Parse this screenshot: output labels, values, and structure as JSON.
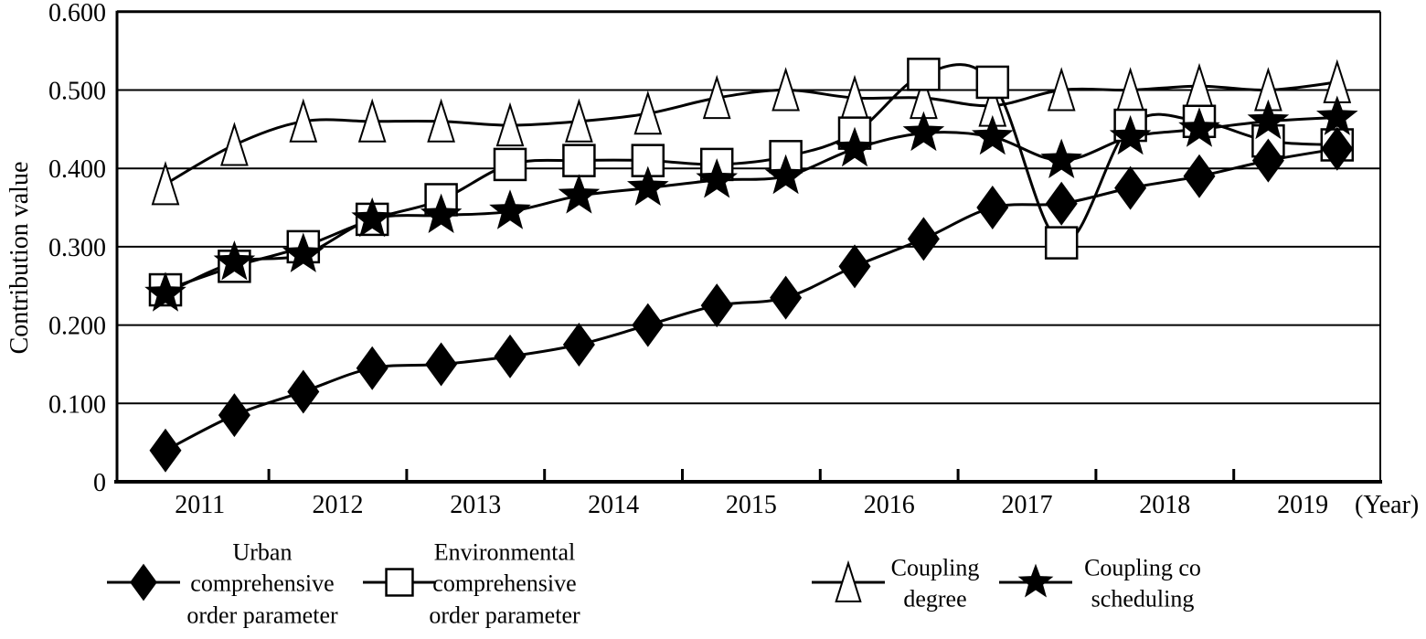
{
  "chart_data": {
    "type": "line",
    "title": "",
    "ylabel": "Contribution value",
    "xlabel": "(Year)",
    "categories": [
      "2011",
      "2012",
      "2013",
      "2014",
      "2015",
      "2016",
      "2017",
      "2018",
      "2019"
    ],
    "x_points": [
      2011.0,
      2011.5,
      2012.0,
      2012.5,
      2013.0,
      2013.5,
      2014.0,
      2014.5,
      2015.0,
      2015.5,
      2016.0,
      2016.5,
      2017.0,
      2017.5,
      2018.0,
      2018.5,
      2019.0,
      2019.5
    ],
    "points_per_year": 2,
    "ylim": [
      0,
      0.6
    ],
    "ytick_labels": [
      "0.600",
      "0.500",
      "0.400",
      "0.300",
      "0.200",
      "0.100",
      "0"
    ],
    "ytick_values": [
      0.6,
      0.5,
      0.4,
      0.3,
      0.2,
      0.1,
      0
    ],
    "grid": "horizontal",
    "legend_position": "bottom",
    "line_color": "#000000",
    "background_color": "#ffffff",
    "series": [
      {
        "name": "Urban comprehensive order parameter",
        "marker": "diamond",
        "fill": "black",
        "values": [
          0.04,
          0.085,
          0.115,
          0.145,
          0.15,
          0.16,
          0.175,
          0.2,
          0.225,
          0.235,
          0.275,
          0.31,
          0.35,
          0.355,
          0.375,
          0.39,
          0.41,
          0.425
        ]
      },
      {
        "name": "Environmental comprehensive order parameter",
        "marker": "square",
        "fill": "white",
        "values": [
          0.245,
          0.275,
          0.3,
          0.335,
          0.36,
          0.405,
          0.41,
          0.41,
          0.405,
          0.415,
          0.445,
          0.52,
          0.51,
          0.305,
          0.455,
          0.46,
          0.435,
          0.43
        ]
      },
      {
        "name": "Coupling degree",
        "marker": "triangle",
        "fill": "white",
        "values": [
          0.38,
          0.43,
          0.46,
          0.46,
          0.46,
          0.455,
          0.46,
          0.47,
          0.49,
          0.5,
          0.49,
          0.49,
          0.48,
          0.5,
          0.5,
          0.505,
          0.5,
          0.51
        ]
      },
      {
        "name": "Coupling co scheduling",
        "marker": "star",
        "fill": "black",
        "values": [
          0.24,
          0.28,
          0.29,
          0.335,
          0.34,
          0.345,
          0.365,
          0.375,
          0.385,
          0.39,
          0.425,
          0.445,
          0.44,
          0.41,
          0.44,
          0.45,
          0.46,
          0.465
        ]
      }
    ],
    "legend": [
      {
        "marker": "diamond",
        "lines": [
          "Urban",
          "comprehensive",
          "order parameter"
        ]
      },
      {
        "marker": "square",
        "lines": [
          "Environmental",
          "comprehensive",
          "order parameter"
        ]
      },
      {
        "marker": "triangle",
        "lines": [
          "Coupling",
          "degree"
        ]
      },
      {
        "marker": "star",
        "lines": [
          "Coupling co",
          "scheduling"
        ]
      }
    ]
  }
}
